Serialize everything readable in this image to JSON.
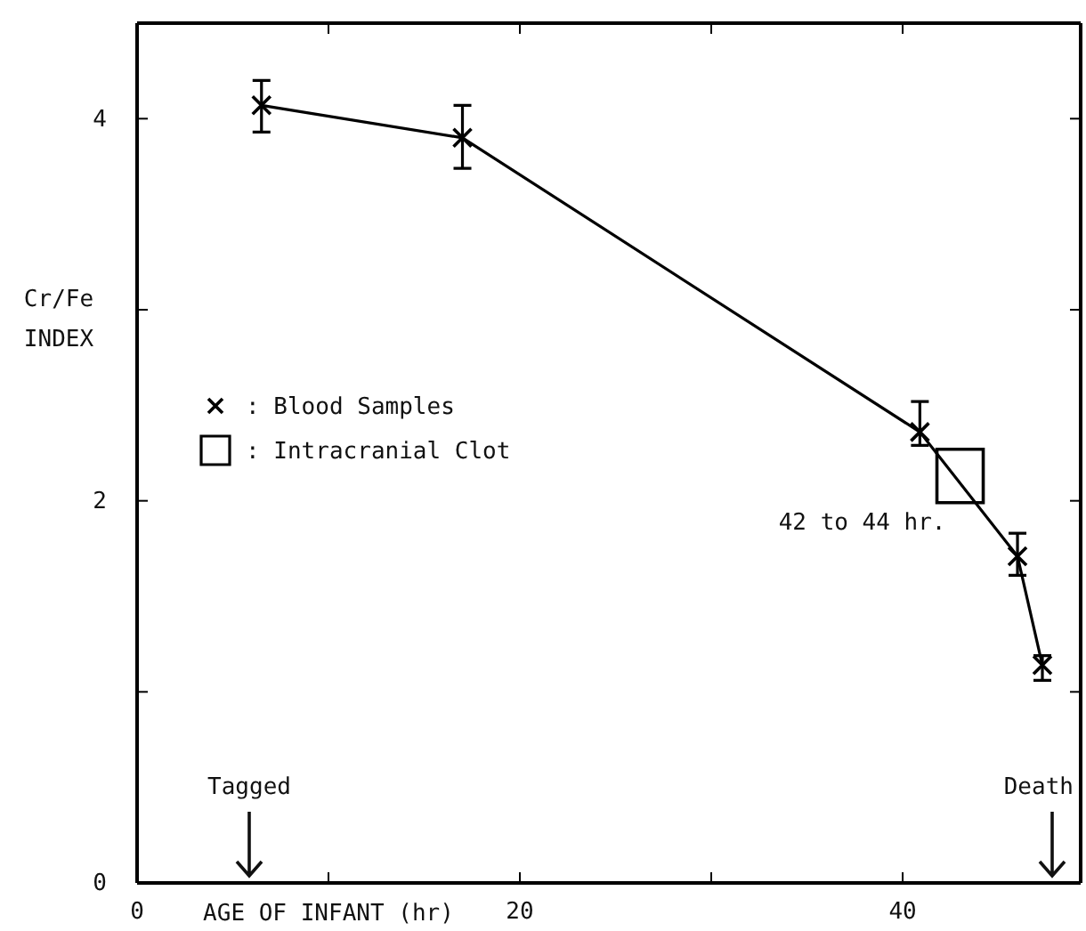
{
  "chart_data": {
    "type": "line",
    "xlabel": "AGE OF INFANT (hr)",
    "ylabel": "Cr/Fe INDEX",
    "xlim": [
      0,
      49.3
    ],
    "ylim": [
      0,
      4.5
    ],
    "xticks": [
      0,
      {
        "value": 10,
        "label": null
      },
      20,
      {
        "value": 30,
        "label": null
      },
      40
    ],
    "yticks": [
      0,
      {
        "value": 1,
        "label": null
      },
      2,
      {
        "value": 3,
        "label": null
      },
      4
    ],
    "series": [
      {
        "name": ": Blood Samples",
        "color": "#000000",
        "marker": "cross",
        "x": [
          6.5,
          17.0,
          40.9,
          46.0,
          47.3
        ],
        "values": [
          4.07,
          3.9,
          2.36,
          1.71,
          1.14
        ],
        "errors": [
          [
            3.93,
            4.2
          ],
          [
            3.74,
            4.07
          ],
          [
            2.29,
            2.52
          ],
          [
            1.61,
            1.83
          ],
          [
            1.06,
            1.19
          ]
        ]
      },
      {
        "name": ": Intracranial Clot",
        "type": "scatter",
        "color": "#000000",
        "marker": "square",
        "x": [
          43
        ],
        "values": [
          2.13
        ]
      }
    ],
    "annotations": [
      {
        "text": "42 to 44 hr.",
        "x": 43,
        "y": 2.13
      },
      "Tagged",
      "Death"
    ],
    "legend": "left",
    "grid": false
  }
}
